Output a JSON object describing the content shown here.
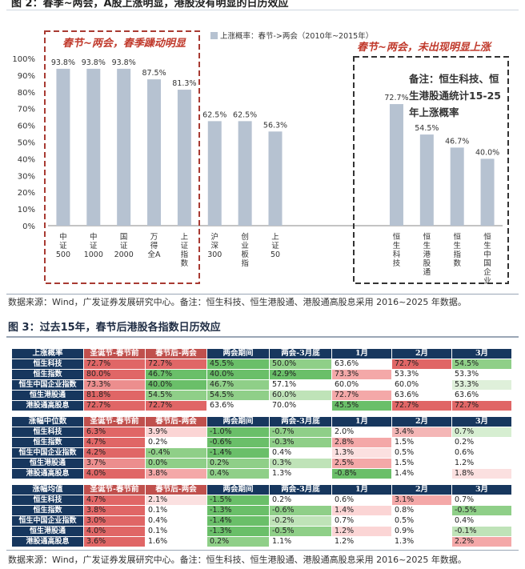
{
  "figure2": {
    "title": "图 2：春季~两会，A股上涨明显，港股没有明显的日历效应",
    "source": "数据来源：Wind，广发证券发展研究中心。备注：恒生科技、恒生港股通、港股通高股息采用 2016~2025 年数据。",
    "annotation_left": "春节~两会，春季躁动明显",
    "annotation_right": "春节~两会，未出现明显上涨",
    "note_lines": [
      "备注：恒生科技、恒",
      "生港股通统计15-25",
      "年上涨概率"
    ],
    "colors": {
      "bar": "#b6c2d1",
      "box_left": "#a83a32",
      "box_right": "#333333",
      "annotation": "#c0392b"
    }
  },
  "chart_data": {
    "type": "bar",
    "legend": "上涨概率：春节->两会（2010年~2015年）",
    "categories": [
      "中证500",
      "中证1000",
      "国证2000",
      "万得全A",
      "上证指数",
      "沪深300",
      "创业板指",
      "上证50",
      "",
      "",
      "",
      "恒生科技",
      "恒生港股通",
      "恒生指数",
      "恒生中国企业"
    ],
    "category_lines": [
      [
        "中",
        "证",
        "500"
      ],
      [
        "中",
        "证",
        "1000"
      ],
      [
        "国",
        "证",
        "2000"
      ],
      [
        "万",
        "得",
        "全A"
      ],
      [
        "上",
        "证",
        "指",
        "数"
      ],
      [
        "沪",
        "深",
        "300"
      ],
      [
        "创",
        "业",
        "板",
        "指"
      ],
      [
        "上",
        "证",
        "50"
      ],
      [],
      [],
      [],
      [
        "恒",
        "生",
        "科",
        "技"
      ],
      [
        "恒",
        "生",
        "港",
        "股",
        "通"
      ],
      [
        "恒",
        "生",
        "指",
        "数"
      ],
      [
        "恒",
        "生",
        "中",
        "国",
        "企",
        "业"
      ]
    ],
    "values": [
      0.938,
      0.938,
      0.938,
      0.875,
      0.813,
      0.625,
      0.625,
      0.563,
      null,
      null,
      null,
      0.727,
      0.545,
      0.467,
      0.4
    ],
    "value_labels": [
      "93.8%",
      "93.8%",
      "93.8%",
      "87.5%",
      "81.3%",
      "62.5%",
      "62.5%",
      "56.3%",
      "",
      "",
      "",
      "72.7%",
      "54.5%",
      "46.7%",
      "40.0%"
    ],
    "yticks": [
      "0%",
      "10%",
      "20%",
      "30%",
      "40%",
      "50%",
      "60%",
      "70%",
      "80%",
      "90%",
      "100%"
    ],
    "ylim": [
      0,
      1
    ]
  },
  "figure3": {
    "title": "图 3：过去15年，春节后港股各指数日历效应",
    "source": "数据来源：Wind，广发证券发展研究中心。备注：恒生科技、恒生港股通、港股通高股息采用 2016~2025 年数据。",
    "columns": [
      "圣诞节-春节前",
      "春节后-两会",
      "两会期间",
      "两会-3月底",
      "1月",
      "2月",
      "3月"
    ],
    "sections": [
      {
        "label": "上涨概率",
        "rows": [
          {
            "name": "恒生科技",
            "cells": [
              {
                "v": "72.7%",
                "c": "#e06666"
              },
              {
                "v": "72.7%",
                "c": "#e06666"
              },
              {
                "v": "45.5%",
                "c": "#6abf69"
              },
              {
                "v": "50.0%",
                "c": "#8fcf88"
              },
              {
                "v": "63.6%",
                "c": "#ffffff"
              },
              {
                "v": "72.7%",
                "c": "#e06666"
              },
              {
                "v": "54.5%",
                "c": "#8fcf88"
              }
            ]
          },
          {
            "name": "恒生指数",
            "cells": [
              {
                "v": "80.0%",
                "c": "#e06666"
              },
              {
                "v": "46.7%",
                "c": "#6abf69"
              },
              {
                "v": "40.0%",
                "c": "#6abf69"
              },
              {
                "v": "42.9%",
                "c": "#6abf69"
              },
              {
                "v": "73.3%",
                "c": "#f4a8a8"
              },
              {
                "v": "53.3%",
                "c": "#ffffff"
              },
              {
                "v": "53.3%",
                "c": "#ffffff"
              }
            ]
          },
          {
            "name": "恒生中国企业指数",
            "cells": [
              {
                "v": "73.3%",
                "c": "#ec8e8e"
              },
              {
                "v": "40.0%",
                "c": "#6abf69"
              },
              {
                "v": "46.7%",
                "c": "#8fcf88"
              },
              {
                "v": "57.1%",
                "c": "#ffffff"
              },
              {
                "v": "60.0%",
                "c": "#ffffff"
              },
              {
                "v": "60.0%",
                "c": "#ffffff"
              },
              {
                "v": "53.3%",
                "c": "#dff0da"
              }
            ]
          },
          {
            "name": "恒生港股通",
            "cells": [
              {
                "v": "81.8%",
                "c": "#e06666"
              },
              {
                "v": "54.5%",
                "c": "#8fcf88"
              },
              {
                "v": "54.5%",
                "c": "#8fcf88"
              },
              {
                "v": "60.0%",
                "c": "#bfe3b8"
              },
              {
                "v": "72.7%",
                "c": "#f4a8a8"
              },
              {
                "v": "63.6%",
                "c": "#ffffff"
              },
              {
                "v": "63.6%",
                "c": "#ffffff"
              }
            ]
          },
          {
            "name": "港股通高股息",
            "cells": [
              {
                "v": "72.7%",
                "c": "#e06666"
              },
              {
                "v": "72.7%",
                "c": "#e06666"
              },
              {
                "v": "63.6%",
                "c": "#ffffff"
              },
              {
                "v": "70.0%",
                "c": "#ffffff"
              },
              {
                "v": "45.5%",
                "c": "#6abf69"
              },
              {
                "v": "72.7%",
                "c": "#e06666"
              },
              {
                "v": "72.7%",
                "c": "#e06666"
              }
            ]
          }
        ]
      },
      {
        "label": "涨幅中位数",
        "rows": [
          {
            "name": "恒生科技",
            "cells": [
              {
                "v": "6.3%",
                "c": "#e06666"
              },
              {
                "v": "3.9%",
                "c": "#fbd5d5"
              },
              {
                "v": "-1.0%",
                "c": "#6abf69"
              },
              {
                "v": "-0.7%",
                "c": "#8fcf88"
              },
              {
                "v": "2.0%",
                "c": "#ffffff"
              },
              {
                "v": "3.4%",
                "c": "#f4b6b6"
              },
              {
                "v": "0.7%",
                "c": "#d6eed1"
              }
            ]
          },
          {
            "name": "恒生指数",
            "cells": [
              {
                "v": "4.7%",
                "c": "#e06666"
              },
              {
                "v": "0.2%",
                "c": "#ffffff"
              },
              {
                "v": "-0.6%",
                "c": "#6abf69"
              },
              {
                "v": "-0.3%",
                "c": "#8fcf88"
              },
              {
                "v": "2.8%",
                "c": "#f4a8a8"
              },
              {
                "v": "1.5%",
                "c": "#ffffff"
              },
              {
                "v": "0.2%",
                "c": "#ffffff"
              }
            ]
          },
          {
            "name": "恒生中国企业指数",
            "cells": [
              {
                "v": "4.2%",
                "c": "#e06666"
              },
              {
                "v": "-0.4%",
                "c": "#8fcf88"
              },
              {
                "v": "-1.4%",
                "c": "#6abf69"
              },
              {
                "v": "0.4%",
                "c": "#ffffff"
              },
              {
                "v": "1.3%",
                "c": "#fbe0e0"
              },
              {
                "v": "0.5%",
                "c": "#ffffff"
              },
              {
                "v": "0.6%",
                "c": "#ffffff"
              }
            ]
          },
          {
            "name": "恒生港股通",
            "cells": [
              {
                "v": "3.7%",
                "c": "#ec8e8e"
              },
              {
                "v": "0.0%",
                "c": "#8fcf88"
              },
              {
                "v": "0.2%",
                "c": "#8fcf88"
              },
              {
                "v": "0.3%",
                "c": "#bfe3b8"
              },
              {
                "v": "2.5%",
                "c": "#f4a8a8"
              },
              {
                "v": "1.5%",
                "c": "#ffffff"
              },
              {
                "v": "1.2%",
                "c": "#ffffff"
              }
            ]
          },
          {
            "name": "港股通高股息",
            "cells": [
              {
                "v": "4.0%",
                "c": "#e06666"
              },
              {
                "v": "3.8%",
                "c": "#f4a8a8"
              },
              {
                "v": "0.4%",
                "c": "#8fcf88"
              },
              {
                "v": "1.3%",
                "c": "#ffffff"
              },
              {
                "v": "-0.8%",
                "c": "#6abf69"
              },
              {
                "v": "1.4%",
                "c": "#ffffff"
              },
              {
                "v": "1.8%",
                "c": "#fbe0e0"
              }
            ]
          }
        ]
      },
      {
        "label": "涨幅均值",
        "rows": [
          {
            "name": "恒生科技",
            "cells": [
              {
                "v": "4.7%",
                "c": "#e06666"
              },
              {
                "v": "2.1%",
                "c": "#fbe0e0"
              },
              {
                "v": "-1.5%",
                "c": "#6abf69"
              },
              {
                "v": "0.2%",
                "c": "#ffffff"
              },
              {
                "v": "0.6%",
                "c": "#ffffff"
              },
              {
                "v": "3.1%",
                "c": "#f4a8a8"
              },
              {
                "v": "0.7%",
                "c": "#ffffff"
              }
            ]
          },
          {
            "name": "恒生指数",
            "cells": [
              {
                "v": "3.8%",
                "c": "#e06666"
              },
              {
                "v": "0.1%",
                "c": "#ffffff"
              },
              {
                "v": "-1.3%",
                "c": "#6abf69"
              },
              {
                "v": "-0.6%",
                "c": "#8fcf88"
              },
              {
                "v": "1.4%",
                "c": "#fbd5d5"
              },
              {
                "v": "0.8%",
                "c": "#ffffff"
              },
              {
                "v": "-0.5%",
                "c": "#8fcf88"
              }
            ]
          },
          {
            "name": "恒生中国企业指数",
            "cells": [
              {
                "v": "3.0%",
                "c": "#e06666"
              },
              {
                "v": "0.4%",
                "c": "#ffffff"
              },
              {
                "v": "-1.4%",
                "c": "#6abf69"
              },
              {
                "v": "-0.2%",
                "c": "#bfe3b8"
              },
              {
                "v": "0.7%",
                "c": "#ffffff"
              },
              {
                "v": "0.5%",
                "c": "#ffffff"
              },
              {
                "v": "0.4%",
                "c": "#ffffff"
              }
            ]
          },
          {
            "name": "恒生港股通",
            "cells": [
              {
                "v": "4.0%",
                "c": "#e06666"
              },
              {
                "v": "0.1%",
                "c": "#ffffff"
              },
              {
                "v": "-1.3%",
                "c": "#6abf69"
              },
              {
                "v": "-0.5%",
                "c": "#8fcf88"
              },
              {
                "v": "1.2%",
                "c": "#fbd5d5"
              },
              {
                "v": "0.9%",
                "c": "#ffffff"
              },
              {
                "v": "-0.1%",
                "c": "#bfe3b8"
              }
            ]
          },
          {
            "name": "港股通高股息",
            "cells": [
              {
                "v": "3.6%",
                "c": "#e06666"
              },
              {
                "v": "1.6%",
                "c": "#ffffff"
              },
              {
                "v": "0.2%",
                "c": "#8fcf88"
              },
              {
                "v": "1.1%",
                "c": "#ffffff"
              },
              {
                "v": "1.2%",
                "c": "#ffffff"
              },
              {
                "v": "1.3%",
                "c": "#ffffff"
              },
              {
                "v": "2.2%",
                "c": "#f4a8a8"
              }
            ]
          }
        ]
      }
    ]
  }
}
